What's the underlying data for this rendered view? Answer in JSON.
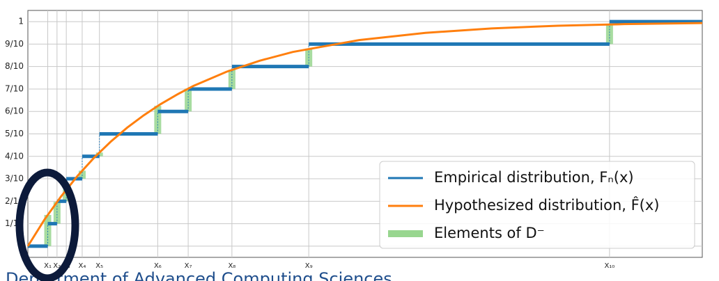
{
  "chart_data": {
    "type": "step",
    "xlim": [
      0,
      5.09
    ],
    "ylim": [
      -0.05,
      1.05
    ],
    "xticks": [
      {
        "value": 0.15,
        "label": "X₁"
      },
      {
        "value": 0.22,
        "label": "X₂"
      },
      {
        "value": 0.29,
        "label": "X₃"
      },
      {
        "value": 0.41,
        "label": "X₄"
      },
      {
        "value": 0.54,
        "label": "X₅"
      },
      {
        "value": 0.98,
        "label": "X₆"
      },
      {
        "value": 1.21,
        "label": "X₇"
      },
      {
        "value": 1.54,
        "label": "X₈"
      },
      {
        "value": 2.12,
        "label": "X₉"
      },
      {
        "value": 4.39,
        "label": "X₁₀"
      }
    ],
    "yticks": [
      {
        "value": 0,
        "label": "0"
      },
      {
        "value": 0.1,
        "label": "1/10"
      },
      {
        "value": 0.2,
        "label": "2/10"
      },
      {
        "value": 0.3,
        "label": "3/10"
      },
      {
        "value": 0.4,
        "label": "4/10"
      },
      {
        "value": 0.5,
        "label": "5/10"
      },
      {
        "value": 0.6,
        "label": "6/10"
      },
      {
        "value": 0.7,
        "label": "7/10"
      },
      {
        "value": 0.8,
        "label": "8/10"
      },
      {
        "value": 0.9,
        "label": "9/10"
      },
      {
        "value": 1,
        "label": "1"
      }
    ],
    "grid": true,
    "legend": "lower right",
    "series": [
      {
        "name": "Empirical distribution, Fₙ(x)",
        "color": "#1f77b4",
        "x": [
          0,
          0.15,
          0.22,
          0.29,
          0.41,
          0.54,
          0.98,
          1.21,
          1.54,
          2.12,
          4.39
        ],
        "values": [
          0,
          0.1,
          0.2,
          0.3,
          0.4,
          0.5,
          0.6,
          0.7,
          0.8,
          0.9,
          1
        ]
      },
      {
        "name": "Hypothesized distribution, F̂(x)",
        "color": "#ff7f0e",
        "x": [
          0,
          0.125,
          0.25,
          0.375,
          0.5,
          0.625,
          0.75,
          0.875,
          1,
          1.125,
          1.25,
          1.5,
          1.75,
          2,
          2.5,
          3,
          3.5,
          4,
          4.5,
          5,
          5.09
        ],
        "values": [
          0,
          0.118,
          0.221,
          0.313,
          0.394,
          0.465,
          0.528,
          0.583,
          0.632,
          0.675,
          0.714,
          0.777,
          0.826,
          0.865,
          0.918,
          0.95,
          0.97,
          0.982,
          0.989,
          0.993,
          0.994
        ]
      },
      {
        "name": "Elements of D⁻",
        "color": "#98d68f",
        "x": [
          0.15,
          0.22,
          0.29,
          0.41,
          0.54,
          0.98,
          1.21,
          1.54,
          2.12,
          4.39
        ],
        "values": [
          0.139,
          0.097,
          0.052,
          0.036,
          0.017,
          0.125,
          0.102,
          0.086,
          0.08,
          0.088
        ]
      }
    ],
    "footer": "Department of Advanced Computing Sciences"
  }
}
